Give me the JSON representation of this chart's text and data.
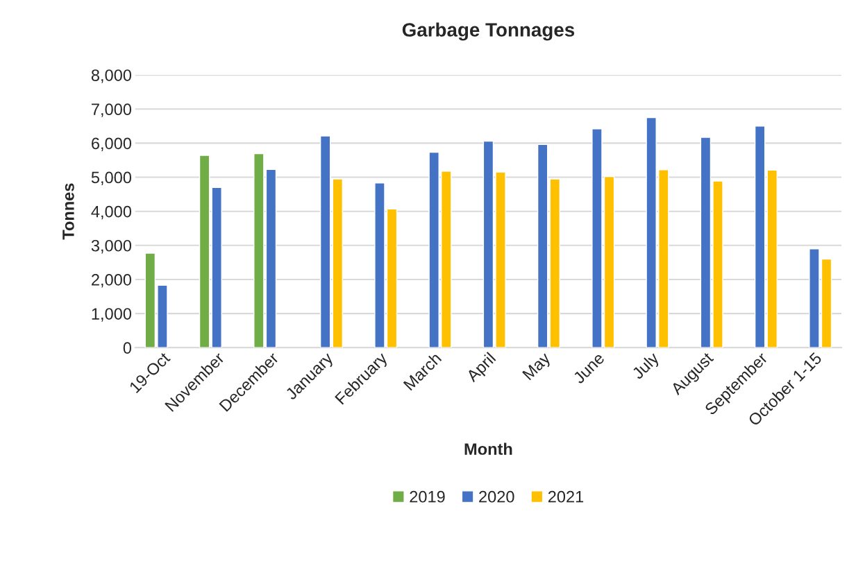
{
  "chart_data": {
    "type": "bar",
    "title": "Garbage Tonnages",
    "xlabel": "Month",
    "ylabel": "Tonnes",
    "categories": [
      "19-Oct",
      "November",
      "December",
      "January",
      "February",
      "March",
      "April",
      "May",
      "June",
      "July",
      "August",
      "September",
      "October 1-15"
    ],
    "series": [
      {
        "name": "2019",
        "color": "#70ad47",
        "values": [
          2770,
          5640,
          5690,
          null,
          null,
          null,
          null,
          null,
          null,
          null,
          null,
          null,
          null
        ]
      },
      {
        "name": "2020",
        "color": "#4472c4",
        "values": [
          1830,
          4700,
          5230,
          6210,
          4830,
          5730,
          6060,
          5960,
          6420,
          6750,
          6170,
          6500,
          2900
        ]
      },
      {
        "name": "2021",
        "color": "#ffc000",
        "values": [
          null,
          null,
          null,
          4950,
          4070,
          5180,
          5150,
          4950,
          5020,
          5220,
          4890,
          5210,
          2600
        ]
      }
    ],
    "ylim": [
      0,
      8000
    ],
    "yticks": [
      0,
      {
        "value": 1000,
        "label": "1,000"
      },
      {
        "value": 2000,
        "label": "2,000"
      },
      {
        "value": 3000,
        "label": "3,000"
      },
      {
        "value": 4000,
        "label": "4,000"
      },
      {
        "value": 5000,
        "label": "5,000"
      },
      {
        "value": 6000,
        "label": "6,000"
      },
      {
        "value": 7000,
        "label": "7,000"
      },
      {
        "value": 8000,
        "label": "8,000"
      }
    ],
    "grid": "y",
    "legend": "bottom"
  }
}
